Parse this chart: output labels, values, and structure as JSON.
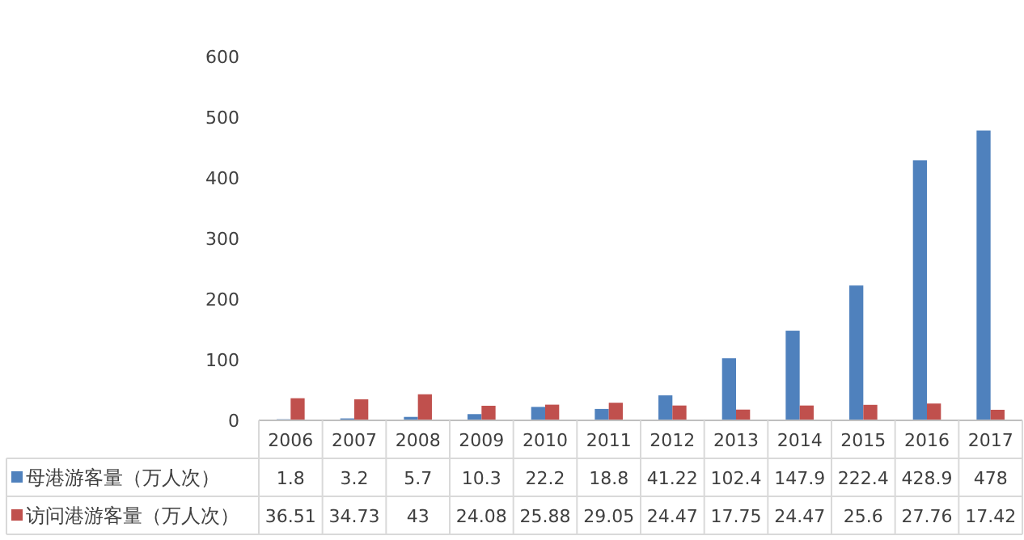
{
  "chart_data": {
    "type": "bar",
    "categories": [
      "2006",
      "2007",
      "2008",
      "2009",
      "2010",
      "2011",
      "2012",
      "2013",
      "2014",
      "2015",
      "2016",
      "2017"
    ],
    "series": [
      {
        "name": "母港游客量（万人次）",
        "color": "#4f81bd",
        "values": [
          1.8,
          3.2,
          5.7,
          10.3,
          22.2,
          18.8,
          41.22,
          102.4,
          147.9,
          222.4,
          428.9,
          478
        ]
      },
      {
        "name": "访问港游客量（万人次）",
        "color": "#c0504d",
        "values": [
          36.51,
          34.73,
          43,
          24.08,
          25.88,
          29.05,
          24.47,
          17.75,
          24.47,
          25.6,
          27.76,
          17.42
        ]
      }
    ],
    "ylim": [
      0,
      600
    ],
    "yticks": [
      0,
      100,
      200,
      300,
      400,
      500,
      600
    ],
    "data_labels": true,
    "legend": "bottom",
    "grid": false
  }
}
